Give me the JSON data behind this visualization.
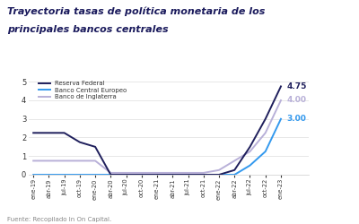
{
  "title_line1": "Trayectoria tasas de política monetaria de los",
  "title_line2": "principales bancos centrales",
  "footnote": "Fuente: Recopilado In On Capital.",
  "ylim": [
    0,
    5.3
  ],
  "yticks": [
    0,
    1,
    2,
    3,
    4,
    5
  ],
  "color_fed": "#1f1f5c",
  "color_bce": "#3399ee",
  "color_boe": "#b8b0d8",
  "label_fed": "Reserva Federal",
  "label_bce": "Banco Central Europeo",
  "label_boe": "Banco de Inglaterra",
  "end_label_fed": "4.75",
  "end_label_bce": "3.00",
  "end_label_boe": "4.00",
  "x_labels": [
    "ene-19",
    "abr-19",
    "jul-19",
    "oct-19",
    "ene-20",
    "abr-20",
    "jul-20",
    "oct-20",
    "ene-21",
    "abr-21",
    "jul-21",
    "oct-21",
    "ene-22",
    "abr-22",
    "jul-22",
    "oct-22",
    "ene-23"
  ],
  "fed_data": [
    2.25,
    2.25,
    2.25,
    1.75,
    1.5,
    0.0,
    0.0,
    0.0,
    0.0,
    0.0,
    0.0,
    0.0,
    0.0,
    0.25,
    1.5,
    3.0,
    4.75
  ],
  "bce_data": [
    0.0,
    0.0,
    0.0,
    0.0,
    0.0,
    0.0,
    0.0,
    0.0,
    0.0,
    0.0,
    0.0,
    0.0,
    0.0,
    0.0,
    0.5,
    1.25,
    3.0
  ],
  "boe_data": [
    0.75,
    0.75,
    0.75,
    0.75,
    0.75,
    0.1,
    0.1,
    0.1,
    0.1,
    0.1,
    0.1,
    0.1,
    0.25,
    0.75,
    1.25,
    2.25,
    4.0
  ],
  "background_color": "#ffffff"
}
